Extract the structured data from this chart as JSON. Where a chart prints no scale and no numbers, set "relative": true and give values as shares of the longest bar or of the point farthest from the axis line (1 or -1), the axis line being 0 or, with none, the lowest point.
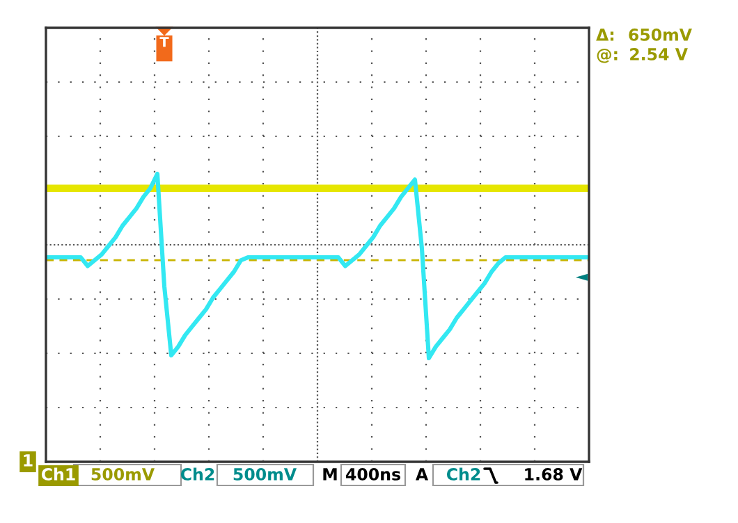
{
  "chart_data": {
    "type": "line",
    "relative": true,
    "categories": [
      null,
      null,
      null,
      null,
      null,
      null,
      null,
      null,
      null,
      null,
      null,
      null,
      null,
      null,
      null,
      null,
      null,
      null,
      null,
      null,
      null,
      null,
      null,
      null,
      null,
      null,
      null,
      null,
      null,
      null,
      null,
      null,
      null,
      null,
      null,
      null,
      null,
      null,
      null,
      null,
      null,
      null,
      null,
      null,
      null,
      null,
      null,
      null,
      null,
      null,
      null,
      null,
      null,
      null,
      null,
      null,
      null,
      null,
      null,
      null,
      null,
      null,
      null,
      null,
      null,
      null,
      null,
      null,
      null,
      null,
      null,
      null,
      null,
      null,
      null,
      null,
      null,
      null,
      null
    ],
    "series": [
      {
        "color": "#e6e600",
        "values": [
          0.95,
          0.95,
          0.95,
          0.95,
          0.95,
          0.95,
          0.95,
          0.95,
          0.95,
          0.95,
          0.95,
          0.95,
          0.95,
          0.95,
          0.95,
          0.95,
          0.95,
          0.95,
          0.95,
          0.95,
          0.95,
          0.95,
          0.95,
          0.95,
          0.95,
          0.95,
          0.95,
          0.95,
          0.95,
          0.95,
          0.95,
          0.95,
          0.95,
          0.95,
          0.95,
          0.95,
          0.95,
          0.95,
          0.95,
          0.95,
          0.95,
          0.95,
          0.95,
          0.95,
          0.95,
          0.95,
          0.95,
          0.95,
          0.95,
          0.95,
          0.95,
          0.95,
          0.95,
          0.95,
          0.95,
          0.95,
          0.95,
          0.95,
          0.95,
          0.95,
          0.95,
          0.95,
          0.95,
          0.95,
          0.95,
          0.95,
          0.95,
          0.95,
          0.95,
          0.95,
          0.95,
          0.95,
          0.95,
          0.95,
          0.95,
          0.95,
          0.95,
          0.95,
          0.95
        ]
      },
      {
        "color": "#33e8f2",
        "values": [
          0.71,
          0.71,
          0.71,
          0.71,
          0.71,
          0.71,
          0.68,
          0.7,
          0.72,
          0.75,
          0.78,
          0.82,
          0.85,
          0.88,
          0.92,
          0.95,
          1,
          0.61,
          0.37,
          0.4,
          0.44,
          0.47,
          0.5,
          0.53,
          0.57,
          0.6,
          0.63,
          0.66,
          0.7,
          0.71,
          0.71,
          0.71,
          0.71,
          0.71,
          0.71,
          0.71,
          0.71,
          0.71,
          0.71,
          0.71,
          0.71,
          0.71,
          0.71,
          0.68,
          0.7,
          0.72,
          0.75,
          0.78,
          0.82,
          0.85,
          0.88,
          0.92,
          0.95,
          0.98,
          0.74,
          0.36,
          0.4,
          0.43,
          0.46,
          0.5,
          0.53,
          0.56,
          0.59,
          0.62,
          0.66,
          0.69,
          0.71,
          0.71,
          0.71,
          0.71,
          0.71,
          0.71,
          0.71,
          0.71,
          0.71,
          0.71,
          0.71,
          0.71,
          0.71
        ]
      }
    ],
    "ref_lines": [
      {
        "axis": "y",
        "value": 0.7,
        "color": "#c8b400",
        "line_style": "dashed"
      }
    ],
    "grid": true,
    "annotations": [
      "T",
      "Δ:",
      "650mV",
      "@:",
      "2.54 V",
      "1",
      "Ch1",
      "500mV",
      "Ch2",
      "500mV",
      "M",
      "400ns",
      "A",
      "Ch2",
      "1.68 V"
    ]
  }
}
